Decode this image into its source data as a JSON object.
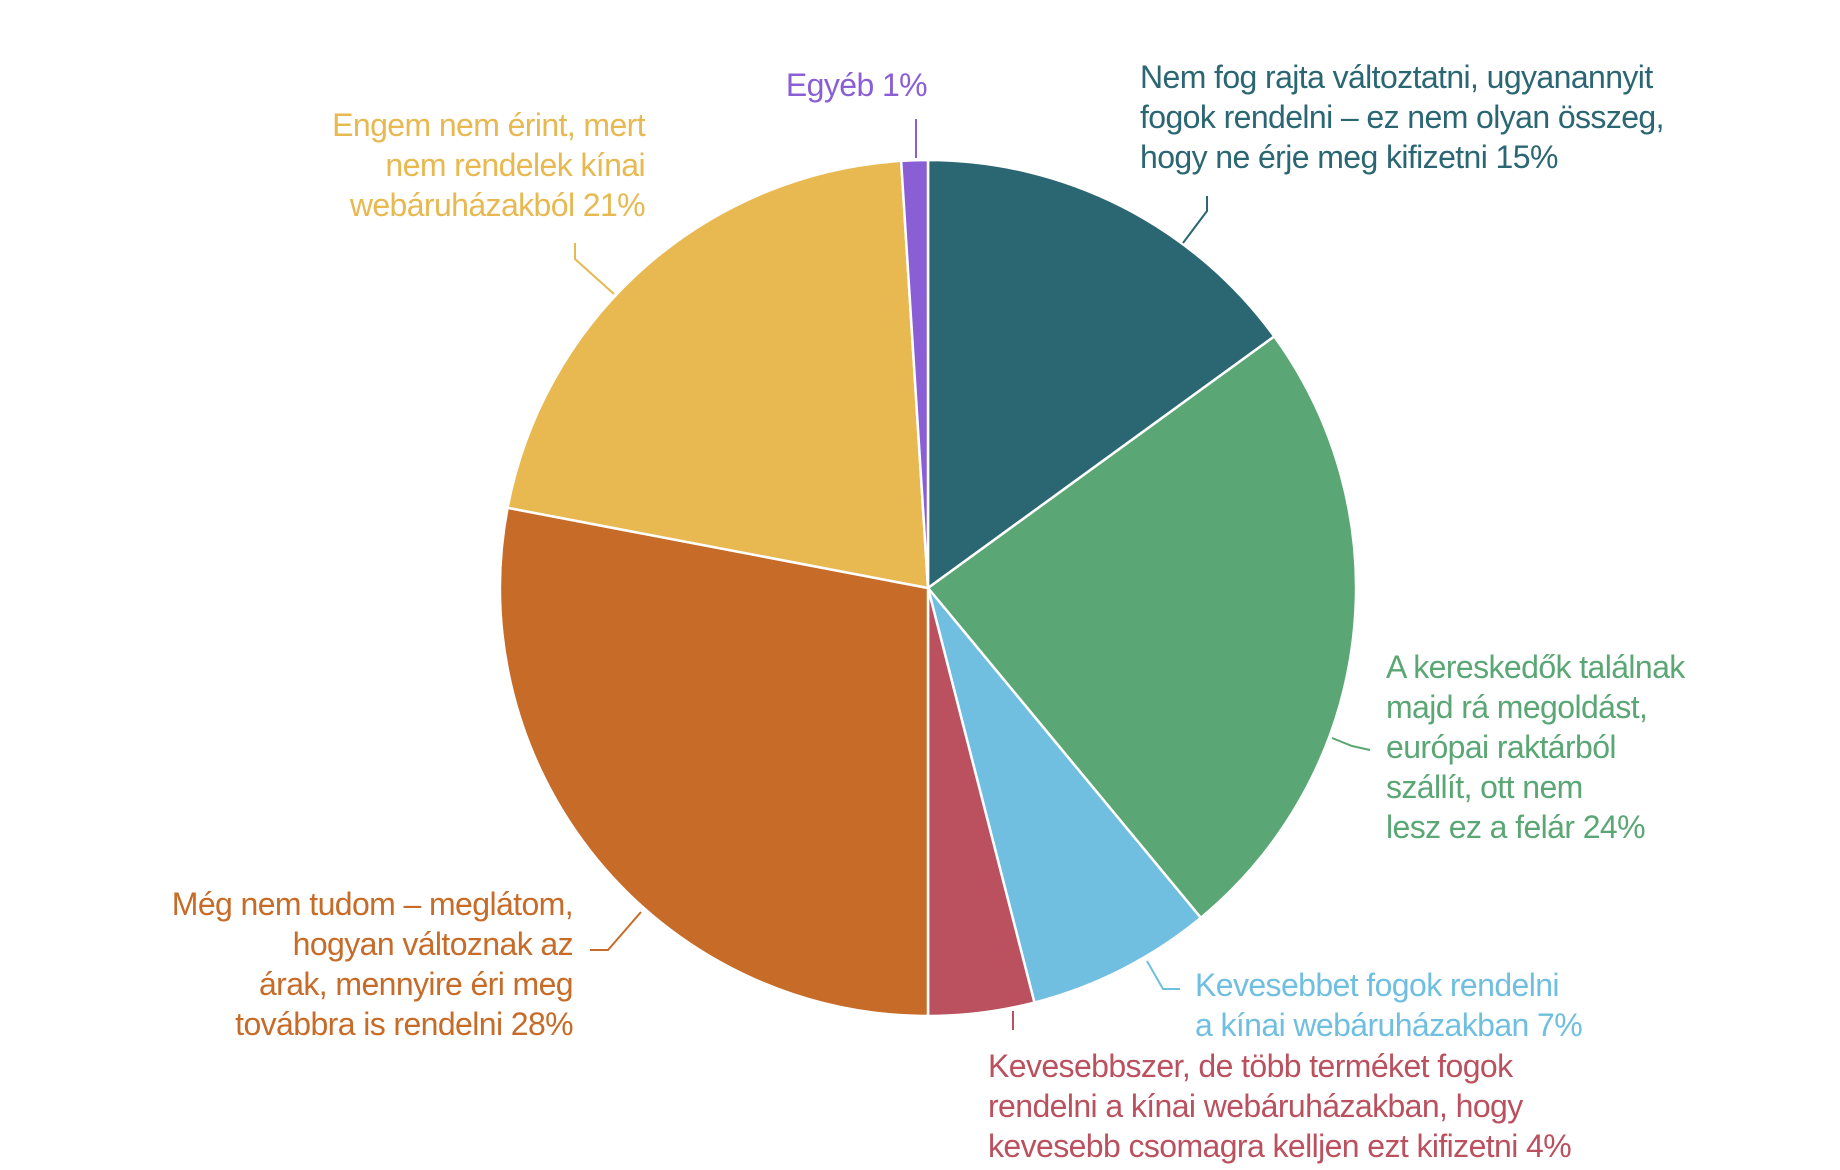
{
  "chart_data": {
    "type": "pie",
    "title": "",
    "start": "top",
    "direction": "clockwise",
    "slices": [
      {
        "label_lines": [
          "Nem fog rajta változtatni, ugyanannyit",
          "fogok rendelni – ez nem olyan összeg,",
          "hogy ne érje meg kifizetni 15%"
        ],
        "value": 15,
        "color": "#2b6673"
      },
      {
        "label_lines": [
          "A kereskedők találnak",
          "majd rá megoldást,",
          "európai raktárból",
          "szállít, ott nem",
          "lesz ez a felár 24%"
        ],
        "value": 24,
        "color": "#5aa674"
      },
      {
        "label_lines": [
          "Kevesebbet fogok rendelni",
          "a kínai webáruházakban 7%"
        ],
        "value": 7,
        "color": "#70bfe0"
      },
      {
        "label_lines": [
          "Kevesebbszer, de több terméket fogok",
          "rendelni a kínai webáruházakban, hogy",
          "kevesebb csomagra kelljen ezt kifizetni 4%"
        ],
        "value": 4,
        "color": "#bb505e"
      },
      {
        "label_lines": [
          "Még nem tudom – meglátom,",
          "hogyan változnak az",
          "árak, mennyire éri meg",
          "továbbra is rendelni 28%"
        ],
        "value": 28,
        "color": "#c66b28"
      },
      {
        "label_lines": [
          "Engem nem érint, mert",
          "nem rendelek kínai",
          "webáruházakból 21%"
        ],
        "value": 21,
        "color": "#e8b851"
      },
      {
        "label_lines": [
          "Egyéb 1%"
        ],
        "value": 1,
        "color": "#8a5fd6"
      }
    ]
  }
}
